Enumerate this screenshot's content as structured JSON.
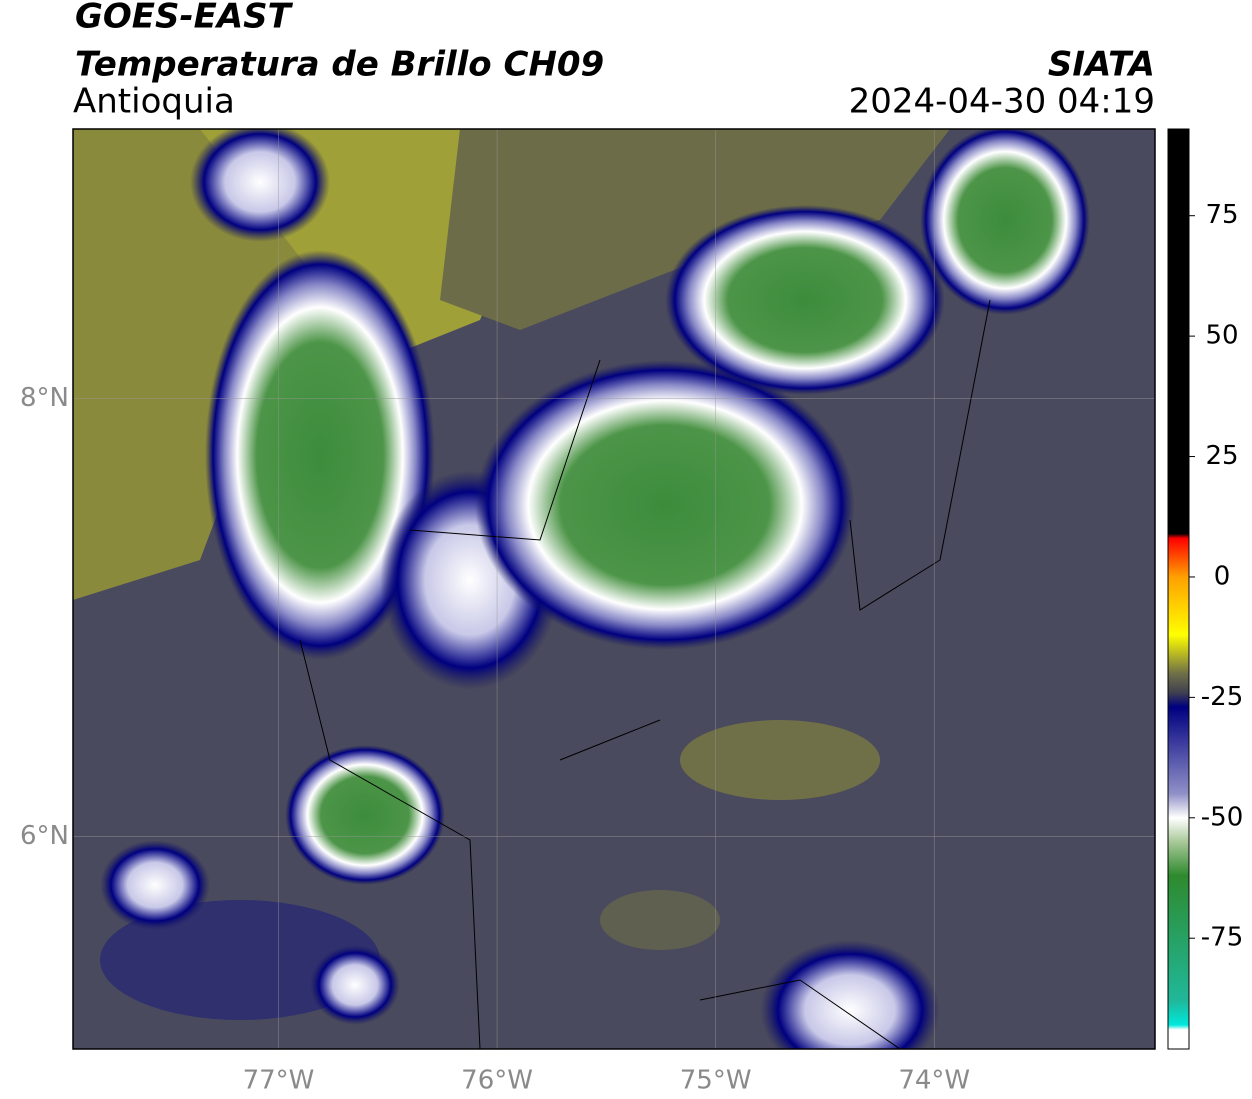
{
  "header": {
    "satellite": "GOES-EAST",
    "product": "Temperatura de Brillo CH09",
    "region": "Antioquia",
    "source": "SIATA",
    "datetime": "2024-04-30 04:19"
  },
  "map": {
    "lonlim": [
      -77.94,
      -72.99
    ],
    "latlim": [
      5.03,
      9.23
    ],
    "lonticks": [
      {
        "value": -77,
        "label": "77°W"
      },
      {
        "value": -76,
        "label": "76°W"
      },
      {
        "value": -75,
        "label": "75°W"
      },
      {
        "value": -74,
        "label": "74°W"
      }
    ],
    "latticks": [
      {
        "value": 8,
        "label": "8°N"
      },
      {
        "value": 6,
        "label": "6°N"
      }
    ],
    "grid": true
  },
  "colorbar": {
    "lim": [
      -98,
      93
    ],
    "ticks": [
      75,
      50,
      25,
      0,
      -25,
      -50,
      -75
    ],
    "colormap": [
      {
        "value": -98,
        "color": "#ffffff"
      },
      {
        "value": -94,
        "color": "#ffffff"
      },
      {
        "value": -93,
        "color": "#00e8dc"
      },
      {
        "value": -88,
        "color": "#20b89a"
      },
      {
        "value": -62,
        "color": "#2e8a2e"
      },
      {
        "value": -55,
        "color": "#a8c898"
      },
      {
        "value": -50,
        "color": "#ffffff"
      },
      {
        "value": -45,
        "color": "#9090c8"
      },
      {
        "value": -27,
        "color": "#000080"
      },
      {
        "value": -24,
        "color": "#404050"
      },
      {
        "value": -20,
        "color": "#707048"
      },
      {
        "value": -12,
        "color": "#ffff00"
      },
      {
        "value": 0,
        "color": "#ffa000"
      },
      {
        "value": 8,
        "color": "#ff0000"
      },
      {
        "value": 9,
        "color": "#000000"
      },
      {
        "value": 93,
        "color": "#000000"
      }
    ]
  }
}
